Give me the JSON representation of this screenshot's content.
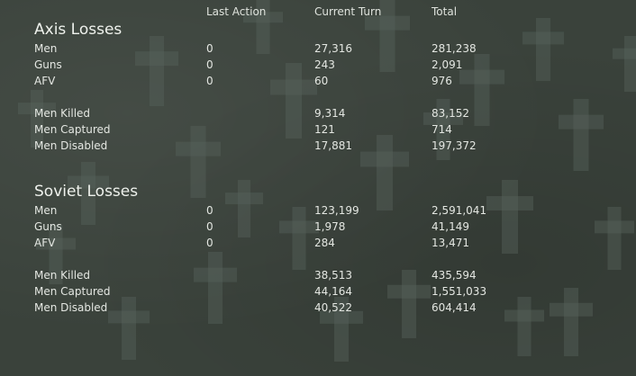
{
  "columns": {
    "last_action": "Last Action",
    "current_turn": "Current Turn",
    "total": "Total"
  },
  "axis": {
    "title": "Axis Losses",
    "men": {
      "label": "Men",
      "last": "0",
      "turn": "27,316",
      "total": "281,238"
    },
    "guns": {
      "label": "Guns",
      "last": "0",
      "turn": "243",
      "total": "2,091"
    },
    "afv": {
      "label": "AFV",
      "last": "0",
      "turn": "60",
      "total": "976"
    },
    "killed": {
      "label": "Men Killed",
      "turn": "9,314",
      "total": "83,152"
    },
    "captured": {
      "label": "Men Captured",
      "turn": "121",
      "total": "714"
    },
    "disabled": {
      "label": "Men Disabled",
      "turn": "17,881",
      "total": "197,372"
    }
  },
  "soviet": {
    "title": "Soviet Losses",
    "men": {
      "label": "Men",
      "last": "0",
      "turn": "123,199",
      "total": "2,591,041"
    },
    "guns": {
      "label": "Guns",
      "last": "0",
      "turn": "1,978",
      "total": "41,149"
    },
    "afv": {
      "label": "AFV",
      "last": "0",
      "turn": "284",
      "total": "13,471"
    },
    "killed": {
      "label": "Men Killed",
      "turn": "38,513",
      "total": "435,594"
    },
    "captured": {
      "label": "Men Captured",
      "turn": "44,164",
      "total": "1,551,033"
    },
    "disabled": {
      "label": "Men Disabled",
      "turn": "40,522",
      "total": "604,414"
    }
  },
  "colors": {
    "background": "#3a423b",
    "cross": "#56615a",
    "text": "#e4e7e2"
  }
}
